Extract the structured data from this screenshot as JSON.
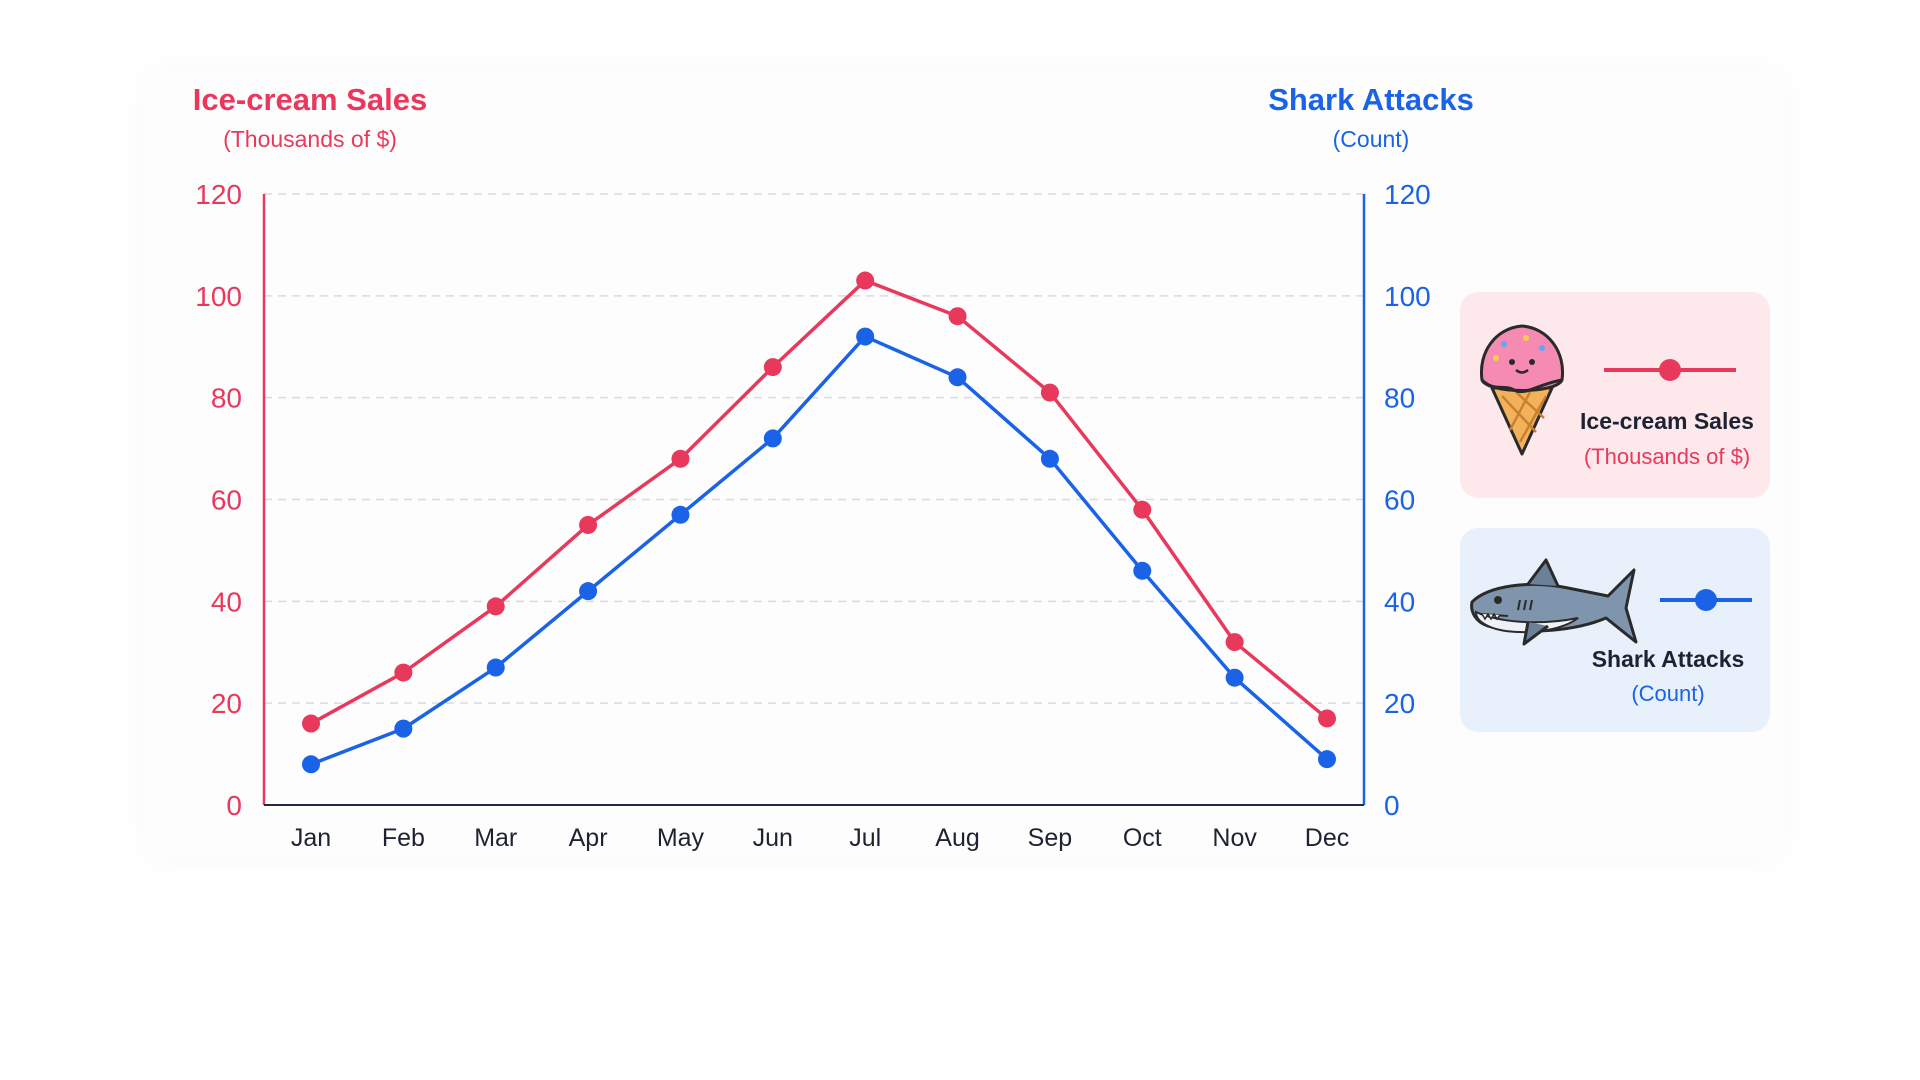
{
  "colors": {
    "ice": "#e8395c",
    "shark": "#1a63e6",
    "grid": "#d9dbe0",
    "text_dark": "#1e2333"
  },
  "legend": {
    "ice": {
      "title": "Ice-cream Sales",
      "sub": "(Thousands of $)",
      "icon": "ice-cream-cone-icon"
    },
    "shark": {
      "title": "Shark Attacks",
      "sub": "(Count)",
      "icon": "shark-icon"
    }
  },
  "chart_data": {
    "type": "line",
    "categories": [
      "Jan",
      "Feb",
      "Mar",
      "Apr",
      "May",
      "Jun",
      "Jul",
      "Aug",
      "Sep",
      "Oct",
      "Nov",
      "Dec"
    ],
    "series": [
      {
        "name": "Ice-cream Sales",
        "axis": "left",
        "color": "#e8395c",
        "values": [
          16,
          26,
          39,
          55,
          68,
          86,
          103,
          96,
          81,
          58,
          32,
          17
        ]
      },
      {
        "name": "Shark Attacks",
        "axis": "right",
        "color": "#1a63e6",
        "values": [
          8,
          15,
          27,
          42,
          57,
          72,
          92,
          84,
          68,
          46,
          25,
          9
        ]
      }
    ],
    "left_axis": {
      "title": "Ice-cream Sales",
      "unit": "(Thousands of $)",
      "ylim": [
        0,
        120
      ],
      "ticks": [
        0,
        20,
        40,
        60,
        80,
        100,
        120
      ]
    },
    "right_axis": {
      "title": "Shark Attacks",
      "unit": "(Count)",
      "ylim": [
        0,
        120
      ],
      "ticks": [
        0,
        20,
        40,
        60,
        80,
        100,
        120
      ]
    },
    "grid": true,
    "legend_position": "right"
  }
}
